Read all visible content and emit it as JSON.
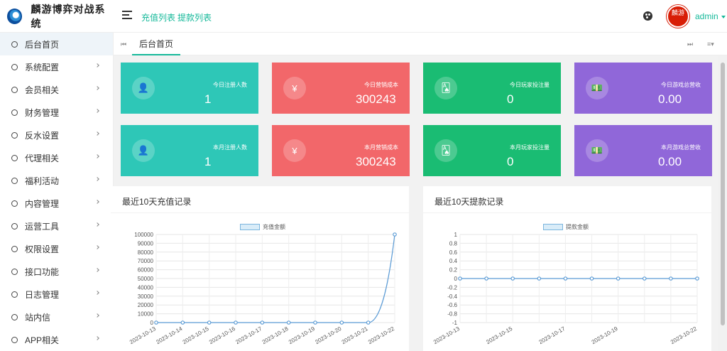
{
  "app": {
    "title": "麟游博弈对战系统"
  },
  "header": {
    "links": [
      "充值列表",
      "提款列表"
    ],
    "avatar_text": "麟游",
    "user": "admin"
  },
  "sidebar": {
    "items": [
      {
        "label": "后台首页",
        "active": true,
        "arrow": false
      },
      {
        "label": "系统配置",
        "active": false,
        "arrow": true
      },
      {
        "label": "会员相关",
        "active": false,
        "arrow": true
      },
      {
        "label": "财务管理",
        "active": false,
        "arrow": true
      },
      {
        "label": "反水设置",
        "active": false,
        "arrow": true
      },
      {
        "label": "代理相关",
        "active": false,
        "arrow": true
      },
      {
        "label": "福利活动",
        "active": false,
        "arrow": true
      },
      {
        "label": "内容管理",
        "active": false,
        "arrow": true
      },
      {
        "label": "运营工具",
        "active": false,
        "arrow": true
      },
      {
        "label": "权限设置",
        "active": false,
        "arrow": true
      },
      {
        "label": "接口功能",
        "active": false,
        "arrow": true
      },
      {
        "label": "日志管理",
        "active": false,
        "arrow": true
      },
      {
        "label": "站内信",
        "active": false,
        "arrow": true
      },
      {
        "label": "APP相关",
        "active": false,
        "arrow": true
      }
    ]
  },
  "tabs": {
    "active": "后台首页",
    "prev_glyph": "⏮",
    "next_glyph": "⏭",
    "menu_glyph": "≡▾"
  },
  "stats": [
    {
      "label": "今日注册人数",
      "value": "1",
      "color": "#2ec7b7",
      "icon": "user-icon",
      "glyph": "👤"
    },
    {
      "label": "今日营销成本",
      "value": "300243",
      "color": "#f2676a",
      "icon": "yen-icon",
      "glyph": "¥"
    },
    {
      "label": "今日玩家投注量",
      "value": "0",
      "color": "#1abc73",
      "icon": "cards-icon",
      "glyph": "🂡"
    },
    {
      "label": "今日游戏总营收",
      "value": "0.00",
      "color": "#9067d9",
      "icon": "money-icon",
      "glyph": "💵"
    },
    {
      "label": "本月注册人数",
      "value": "1",
      "color": "#2ec7b7",
      "icon": "user-icon",
      "glyph": "👤"
    },
    {
      "label": "本月营销成本",
      "value": "300243",
      "color": "#f2676a",
      "icon": "yen-icon",
      "glyph": "¥"
    },
    {
      "label": "本月玩家投注量",
      "value": "0",
      "color": "#1abc73",
      "icon": "cards-icon",
      "glyph": "🂡"
    },
    {
      "label": "本月游戏总营收",
      "value": "0.00",
      "color": "#9067d9",
      "icon": "money-icon",
      "glyph": "💵"
    }
  ],
  "chart_data": [
    {
      "type": "line",
      "title": "最近10天充值记录",
      "series": [
        {
          "name": "充值金额",
          "values": [
            0,
            0,
            0,
            0,
            0,
            0,
            0,
            0,
            0,
            100000
          ]
        }
      ],
      "x": [
        "2023-10-13",
        "2023-10-14",
        "2023-10-15",
        "2023-10-16",
        "2023-10-17",
        "2023-10-18",
        "2023-10-19",
        "2023-10-20",
        "2023-10-21",
        "2023-10-22"
      ],
      "x_tick_labels": [
        "2023-10-13",
        "2023-10-14",
        "2023-10-15",
        "2023-10-16",
        "2023-10-17",
        "2023-10-18",
        "2023-10-19",
        "2023-10-20",
        "2023-10-21",
        "2023-10-22"
      ],
      "ylim": [
        0,
        100000
      ],
      "y_ticks": [
        0,
        10000,
        20000,
        30000,
        40000,
        50000,
        60000,
        70000,
        80000,
        90000,
        100000
      ],
      "grid": true,
      "legend": "top-center",
      "line_color": "#5b9bd5"
    },
    {
      "type": "line",
      "title": "最近10天提款记录",
      "series": [
        {
          "name": "提款金额",
          "values": [
            0,
            0,
            0,
            0,
            0,
            0,
            0,
            0,
            0,
            0
          ]
        }
      ],
      "x": [
        "2023-10-13",
        "2023-10-14",
        "2023-10-15",
        "2023-10-16",
        "2023-10-17",
        "2023-10-18",
        "2023-10-19",
        "2023-10-20",
        "2023-10-21",
        "2023-10-22"
      ],
      "x_tick_labels": [
        "2023-10-13",
        "2023-10-15",
        "2023-10-17",
        "2023-10-19",
        "2023-10-22"
      ],
      "ylim": [
        -1.0,
        1.0
      ],
      "y_ticks": [
        -1.0,
        -0.8,
        -0.6,
        -0.4,
        -0.2,
        0,
        0.2,
        0.4,
        0.6,
        0.8,
        1.0
      ],
      "grid": true,
      "legend": "top-center",
      "line_color": "#5b9bd5"
    }
  ]
}
